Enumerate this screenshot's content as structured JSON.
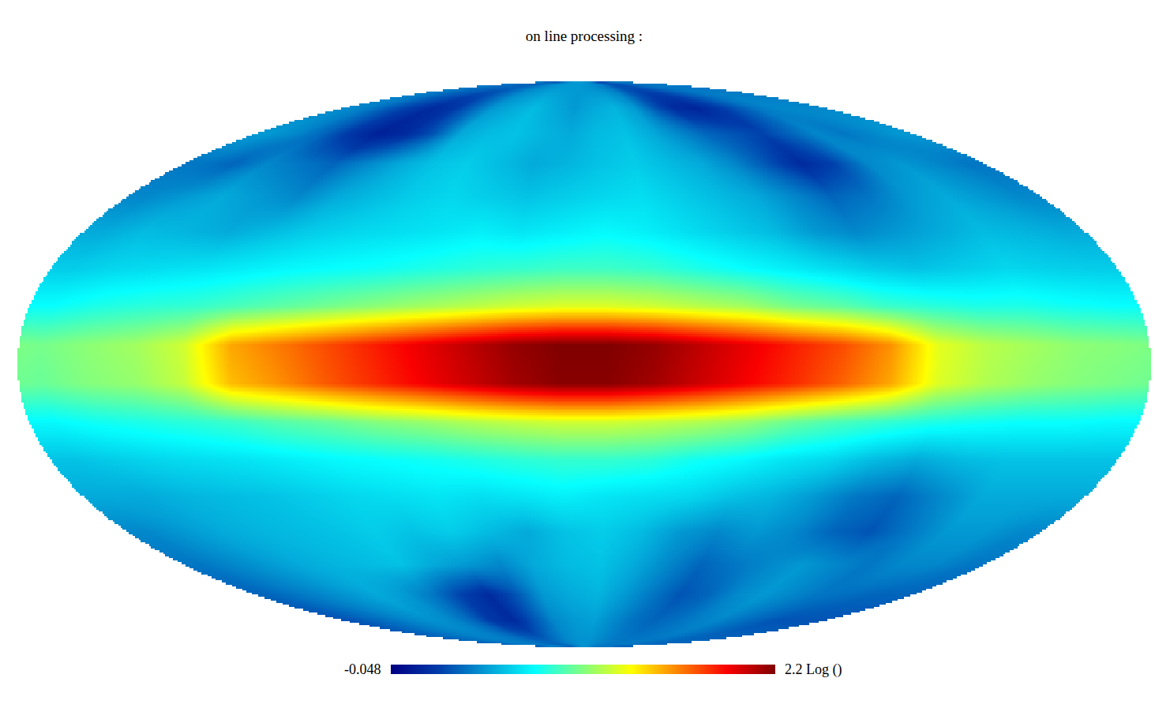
{
  "chart_data": {
    "type": "heatmap",
    "title": "on line processing :",
    "tick_labels": false,
    "xlim": [
      180,
      -180
    ],
    "ylim": [
      -90,
      90
    ],
    "z": [
      [
        0.4,
        0.38,
        0.35,
        0.35,
        0.33,
        0.35,
        0.4,
        0.45,
        0.48,
        0.5,
        0.5,
        0.5,
        0.48,
        0.45,
        0.4,
        0.3,
        0.28,
        0.3,
        0.35,
        0.38,
        0.4,
        0.4,
        0.4,
        0.4
      ],
      [
        0.45,
        0.4,
        0.3,
        0.22,
        0.15,
        0.2,
        0.35,
        0.5,
        0.55,
        0.6,
        0.55,
        0.5,
        0.55,
        0.58,
        0.5,
        0.3,
        0.15,
        0.12,
        0.2,
        0.3,
        0.4,
        0.45,
        0.45,
        0.45
      ],
      [
        0.5,
        0.45,
        0.35,
        0.2,
        0.1,
        0.15,
        0.3,
        0.55,
        0.6,
        0.62,
        0.58,
        0.55,
        0.6,
        0.62,
        0.55,
        0.45,
        0.35,
        0.3,
        0.25,
        0.35,
        0.45,
        0.4,
        0.45,
        0.5
      ],
      [
        0.4,
        0.35,
        0.45,
        0.4,
        0.35,
        0.45,
        0.55,
        0.62,
        0.65,
        0.6,
        0.55,
        0.58,
        0.62,
        0.65,
        0.6,
        0.55,
        0.45,
        0.3,
        0.15,
        0.25,
        0.45,
        0.5,
        0.45,
        0.4
      ],
      [
        0.45,
        0.5,
        0.55,
        0.5,
        0.45,
        0.55,
        0.6,
        0.65,
        0.68,
        0.65,
        0.62,
        0.65,
        0.68,
        0.7,
        0.65,
        0.6,
        0.55,
        0.45,
        0.35,
        0.4,
        0.5,
        0.55,
        0.5,
        0.45
      ],
      [
        0.55,
        0.6,
        0.58,
        0.55,
        0.6,
        0.65,
        0.68,
        0.7,
        0.72,
        0.75,
        0.72,
        0.75,
        0.78,
        0.75,
        0.7,
        0.65,
        0.6,
        0.5,
        0.45,
        0.5,
        0.55,
        0.6,
        0.58,
        0.55
      ],
      [
        0.65,
        0.68,
        0.7,
        0.72,
        0.75,
        0.78,
        0.8,
        0.82,
        0.85,
        0.88,
        0.9,
        0.92,
        0.92,
        0.9,
        0.85,
        0.8,
        0.75,
        0.7,
        0.65,
        0.62,
        0.65,
        0.68,
        0.66,
        0.65
      ],
      [
        0.8,
        0.85,
        0.88,
        0.9,
        0.95,
        1.0,
        1.05,
        1.1,
        1.15,
        1.2,
        1.25,
        1.28,
        1.28,
        1.25,
        1.2,
        1.15,
        1.05,
        1.0,
        0.92,
        0.88,
        0.85,
        0.85,
        0.82,
        0.8
      ],
      [
        1.05,
        1.1,
        1.15,
        1.25,
        1.55,
        1.65,
        1.75,
        1.85,
        1.95,
        2.05,
        2.15,
        2.2,
        2.2,
        2.15,
        2.05,
        1.95,
        1.85,
        1.75,
        1.6,
        1.3,
        1.2,
        1.15,
        1.1,
        1.08
      ],
      [
        1.02,
        1.08,
        1.12,
        1.22,
        1.5,
        1.6,
        1.72,
        1.82,
        1.92,
        2.02,
        2.12,
        2.18,
        2.18,
        2.12,
        2.02,
        1.92,
        1.82,
        1.7,
        1.55,
        1.28,
        1.18,
        1.12,
        1.08,
        1.05
      ],
      [
        0.78,
        0.82,
        0.85,
        0.88,
        0.92,
        0.98,
        1.02,
        1.08,
        1.12,
        1.18,
        1.22,
        1.25,
        1.25,
        1.22,
        1.18,
        1.12,
        1.02,
        0.95,
        0.9,
        0.85,
        0.82,
        0.8,
        0.8,
        0.78
      ],
      [
        0.62,
        0.65,
        0.68,
        0.7,
        0.72,
        0.75,
        0.78,
        0.8,
        0.82,
        0.85,
        0.88,
        0.9,
        0.9,
        0.88,
        0.82,
        0.78,
        0.72,
        0.68,
        0.6,
        0.55,
        0.6,
        0.62,
        0.62,
        0.62
      ],
      [
        0.55,
        0.55,
        0.58,
        0.6,
        0.62,
        0.65,
        0.68,
        0.7,
        0.72,
        0.7,
        0.72,
        0.75,
        0.72,
        0.7,
        0.68,
        0.62,
        0.58,
        0.5,
        0.4,
        0.35,
        0.45,
        0.55,
        0.55,
        0.55
      ],
      [
        0.45,
        0.5,
        0.55,
        0.58,
        0.6,
        0.62,
        0.65,
        0.62,
        0.65,
        0.6,
        0.55,
        0.62,
        0.65,
        0.6,
        0.5,
        0.45,
        0.5,
        0.45,
        0.35,
        0.3,
        0.4,
        0.5,
        0.5,
        0.45
      ],
      [
        0.4,
        0.45,
        0.5,
        0.55,
        0.58,
        0.6,
        0.62,
        0.55,
        0.5,
        0.45,
        0.55,
        0.6,
        0.62,
        0.55,
        0.45,
        0.35,
        0.4,
        0.45,
        0.5,
        0.45,
        0.4,
        0.45,
        0.45,
        0.4
      ],
      [
        0.35,
        0.4,
        0.45,
        0.5,
        0.55,
        0.5,
        0.4,
        0.25,
        0.15,
        0.3,
        0.5,
        0.55,
        0.58,
        0.5,
        0.4,
        0.3,
        0.35,
        0.45,
        0.5,
        0.45,
        0.4,
        0.38,
        0.35,
        0.35
      ],
      [
        0.3,
        0.35,
        0.4,
        0.45,
        0.48,
        0.45,
        0.35,
        0.2,
        0.15,
        0.3,
        0.45,
        0.5,
        0.52,
        0.45,
        0.38,
        0.35,
        0.38,
        0.42,
        0.45,
        0.4,
        0.35,
        0.3,
        0.3,
        0.3
      ],
      [
        0.35,
        0.38,
        0.4,
        0.42,
        0.42,
        0.4,
        0.38,
        0.35,
        0.35,
        0.4,
        0.45,
        0.48,
        0.48,
        0.45,
        0.42,
        0.4,
        0.4,
        0.4,
        0.4,
        0.38,
        0.36,
        0.35,
        0.35,
        0.35
      ]
    ],
    "colorbar": {
      "range": [
        -0.048,
        2.2
      ],
      "ticks": [
        -0.048,
        {
          "value": 2.2,
          "label": "2.2 Log ()"
        }
      ]
    }
  }
}
